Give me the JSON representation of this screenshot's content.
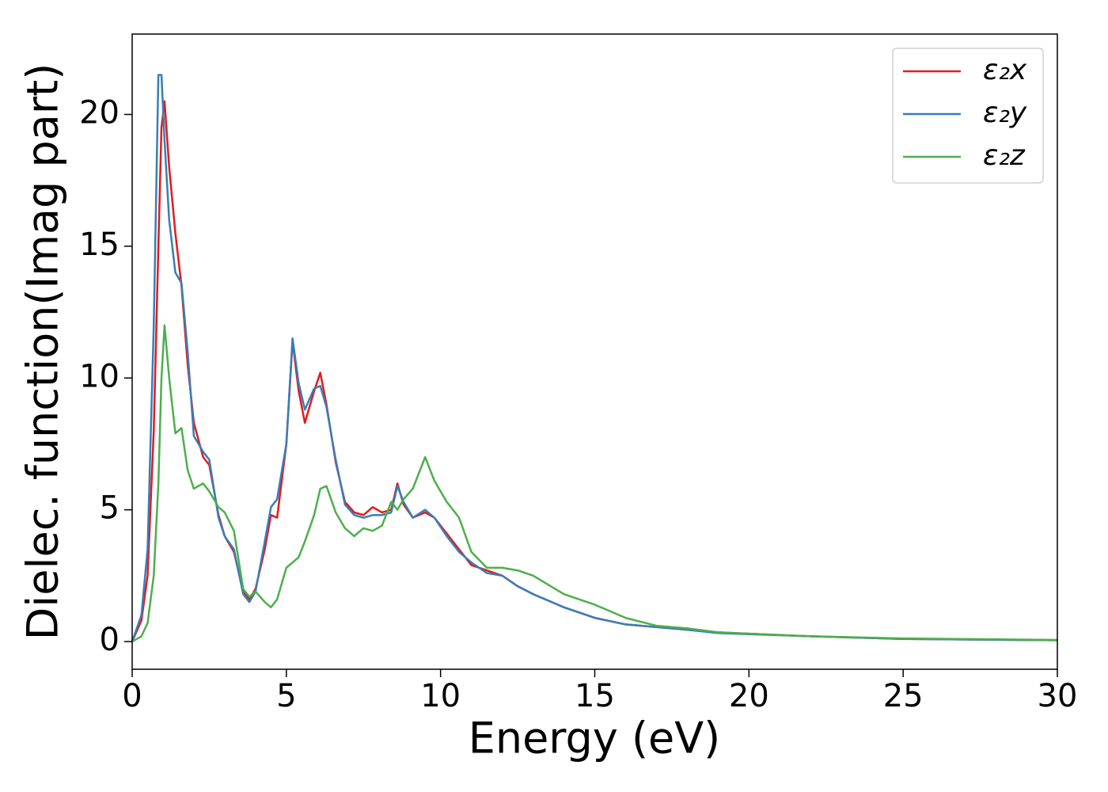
{
  "chart_data": {
    "type": "line",
    "xlabel": "Energy (eV)",
    "ylabel": "Dielec. function(Imag part)",
    "x": [
      0,
      0.3,
      0.5,
      0.7,
      0.85,
      0.95,
      1.05,
      1.2,
      1.4,
      1.6,
      1.8,
      2.0,
      2.3,
      2.5,
      2.8,
      3.0,
      3.3,
      3.6,
      3.8,
      4.0,
      4.3,
      4.5,
      4.7,
      5.0,
      5.2,
      5.4,
      5.6,
      5.9,
      6.1,
      6.3,
      6.6,
      6.9,
      7.2,
      7.5,
      7.8,
      8.1,
      8.4,
      8.6,
      8.8,
      9.1,
      9.5,
      9.8,
      10.2,
      10.6,
      11.0,
      11.5,
      12.0,
      12.5,
      13.0,
      14,
      15,
      16,
      17,
      18,
      19,
      20,
      22,
      25,
      30
    ],
    "series": [
      {
        "name": "ε₂x",
        "color": "#e41a1c",
        "values": [
          0,
          0.8,
          2.5,
          8,
          15,
          19.5,
          20.5,
          18,
          15.5,
          13.5,
          10.5,
          8.3,
          7.0,
          6.7,
          4.8,
          4.0,
          3.4,
          1.9,
          1.6,
          2.0,
          3.5,
          4.8,
          4.7,
          7.5,
          11.4,
          9.5,
          8.3,
          9.5,
          10.2,
          9.0,
          6.8,
          5.3,
          4.9,
          4.8,
          5.1,
          4.9,
          5.0,
          6.0,
          5.2,
          4.7,
          4.9,
          4.7,
          4.1,
          3.5,
          2.9,
          2.7,
          2.5,
          2.1,
          1.8,
          1.3,
          0.9,
          0.65,
          0.55,
          0.45,
          0.35,
          0.3,
          0.2,
          0.1,
          0.05
        ]
      },
      {
        "name": "ε₂y",
        "color": "#377eb8",
        "values": [
          0,
          1,
          3.5,
          12,
          21.5,
          21.5,
          19,
          16,
          14,
          13.6,
          11,
          7.8,
          7.2,
          6.9,
          4.7,
          4.0,
          3.5,
          1.8,
          1.5,
          1.9,
          3.8,
          5.1,
          5.4,
          7.5,
          11.5,
          9.8,
          8.8,
          9.6,
          9.7,
          8.9,
          6.9,
          5.2,
          4.8,
          4.7,
          4.8,
          4.8,
          4.9,
          5.9,
          5.3,
          4.7,
          5.0,
          4.7,
          4.0,
          3.4,
          3.0,
          2.6,
          2.5,
          2.1,
          1.8,
          1.3,
          0.9,
          0.65,
          0.55,
          0.45,
          0.32,
          0.28,
          0.2,
          0.1,
          0.05
        ]
      },
      {
        "name": "ε₂z",
        "color": "#4daf4a",
        "values": [
          0,
          0.2,
          0.7,
          2.5,
          6,
          10,
          12,
          10,
          7.9,
          8.1,
          6.5,
          5.8,
          6.0,
          5.7,
          5.1,
          4.9,
          4.2,
          2.0,
          1.7,
          1.9,
          1.5,
          1.3,
          1.6,
          2.8,
          3.0,
          3.2,
          3.8,
          4.8,
          5.8,
          5.9,
          4.9,
          4.3,
          4.0,
          4.3,
          4.2,
          4.4,
          5.3,
          5.0,
          5.4,
          5.8,
          7.0,
          6.1,
          5.3,
          4.7,
          3.4,
          2.8,
          2.8,
          2.7,
          2.5,
          1.8,
          1.4,
          0.9,
          0.6,
          0.5,
          0.35,
          0.3,
          0.2,
          0.12,
          0.06
        ]
      }
    ],
    "xlim": [
      0,
      30
    ],
    "xticks": [
      0,
      5,
      10,
      15,
      20,
      25,
      30
    ],
    "ylim": [
      -1.05,
      23.05
    ],
    "yticks": [
      0,
      5,
      10,
      15,
      20
    ],
    "legend": "upper right",
    "grid": false
  }
}
